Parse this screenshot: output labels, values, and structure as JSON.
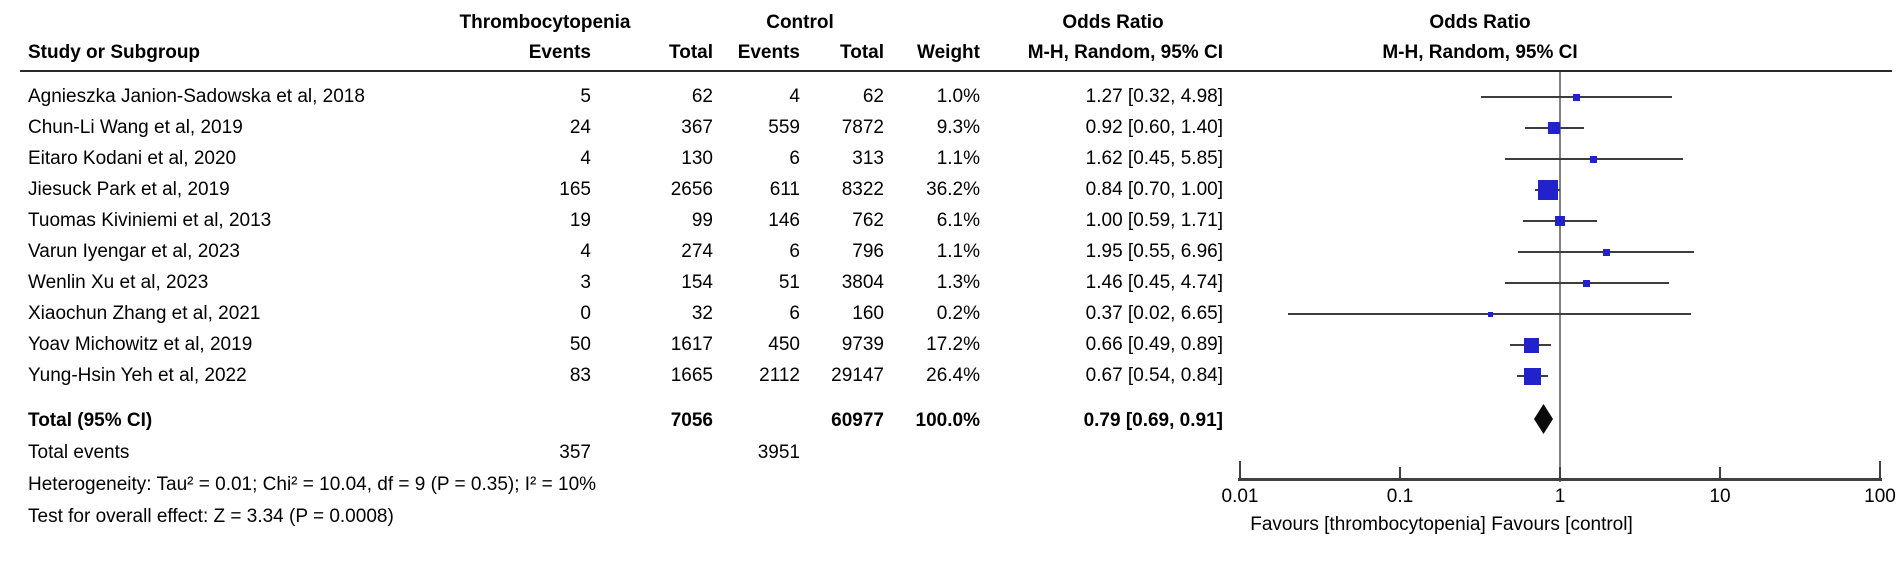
{
  "table": {
    "headers": {
      "group1": "Thrombocytopenia",
      "group2": "Control",
      "study": "Study or Subgroup",
      "events": "Events",
      "total": "Total",
      "weight": "Weight",
      "or_text_title": "Odds Ratio",
      "or_text_sub": "M-H, Random, 95% CI",
      "or_plot_title": "Odds Ratio",
      "or_plot_sub": "M-H, Random, 95% CI"
    },
    "rows": [
      {
        "study": "Agnieszka Janion-Sadowska et al, 2018",
        "events1": "5",
        "total1": "62",
        "events2": "4",
        "total2": "62",
        "weight": "1.0%",
        "or_ci": "1.27 [0.32, 4.98]"
      },
      {
        "study": "Chun-Li Wang et al, 2019",
        "events1": "24",
        "total1": "367",
        "events2": "559",
        "total2": "7872",
        "weight": "9.3%",
        "or_ci": "0.92 [0.60, 1.40]"
      },
      {
        "study": "Eitaro Kodani et al, 2020",
        "events1": "4",
        "total1": "130",
        "events2": "6",
        "total2": "313",
        "weight": "1.1%",
        "or_ci": "1.62 [0.45, 5.85]"
      },
      {
        "study": "Jiesuck Park et al, 2019",
        "events1": "165",
        "total1": "2656",
        "events2": "611",
        "total2": "8322",
        "weight": "36.2%",
        "or_ci": "0.84 [0.70, 1.00]"
      },
      {
        "study": "Tuomas Kiviniemi et al, 2013",
        "events1": "19",
        "total1": "99",
        "events2": "146",
        "total2": "762",
        "weight": "6.1%",
        "or_ci": "1.00 [0.59, 1.71]"
      },
      {
        "study": "Varun Iyengar et al, 2023",
        "events1": "4",
        "total1": "274",
        "events2": "6",
        "total2": "796",
        "weight": "1.1%",
        "or_ci": "1.95 [0.55, 6.96]"
      },
      {
        "study": "Wenlin Xu et al, 2023",
        "events1": "3",
        "total1": "154",
        "events2": "51",
        "total2": "3804",
        "weight": "1.3%",
        "or_ci": "1.46 [0.45, 4.74]"
      },
      {
        "study": "Xiaochun Zhang et al, 2021",
        "events1": "0",
        "total1": "32",
        "events2": "6",
        "total2": "160",
        "weight": "0.2%",
        "or_ci": "0.37 [0.02, 6.65]"
      },
      {
        "study": "Yoav Michowitz et al, 2019",
        "events1": "50",
        "total1": "1617",
        "events2": "450",
        "total2": "9739",
        "weight": "17.2%",
        "or_ci": "0.66 [0.49, 0.89]"
      },
      {
        "study": "Yung-Hsin Yeh et al, 2022",
        "events1": "83",
        "total1": "1665",
        "events2": "2112",
        "total2": "29147",
        "weight": "26.4%",
        "or_ci": "0.67 [0.54, 0.84]"
      }
    ],
    "total_row": {
      "label": "Total (95% CI)",
      "total1": "7056",
      "total2": "60977",
      "weight": "100.0%",
      "or_ci": "0.79 [0.69, 0.91]"
    },
    "total_events": {
      "label": "Total events",
      "events1": "357",
      "events2": "3951"
    },
    "heterogeneity": "Heterogeneity: Tau² = 0.01; Chi² = 10.04, df = 9 (P = 0.35); I² = 10%",
    "overall_effect": "Test for overall effect: Z = 3.34 (P = 0.0008)"
  },
  "chart_data": {
    "type": "forest",
    "x_scale": "log",
    "xlim": [
      0.01,
      100
    ],
    "x_ticks": [
      0.01,
      0.1,
      1,
      10,
      100
    ],
    "x_tick_labels": [
      "0.01",
      "0.1",
      "1",
      "10",
      "100"
    ],
    "effect_measure": "Odds Ratio (M-H, Random, 95% CI)",
    "favours_left": "Favours [thrombocytopenia]",
    "favours_right": "Favours [control]",
    "studies": [
      {
        "name": "Agnieszka Janion-Sadowska et al, 2018",
        "or": 1.27,
        "lo": 0.32,
        "hi": 4.98,
        "weight_pct": 1.0
      },
      {
        "name": "Chun-Li Wang et al, 2019",
        "or": 0.92,
        "lo": 0.6,
        "hi": 1.4,
        "weight_pct": 9.3
      },
      {
        "name": "Eitaro Kodani et al, 2020",
        "or": 1.62,
        "lo": 0.45,
        "hi": 5.85,
        "weight_pct": 1.1
      },
      {
        "name": "Jiesuck Park et al, 2019",
        "or": 0.84,
        "lo": 0.7,
        "hi": 1.0,
        "weight_pct": 36.2
      },
      {
        "name": "Tuomas Kiviniemi et al, 2013",
        "or": 1.0,
        "lo": 0.59,
        "hi": 1.71,
        "weight_pct": 6.1
      },
      {
        "name": "Varun Iyengar et al, 2023",
        "or": 1.95,
        "lo": 0.55,
        "hi": 6.96,
        "weight_pct": 1.1
      },
      {
        "name": "Wenlin Xu et al, 2023",
        "or": 1.46,
        "lo": 0.45,
        "hi": 4.74,
        "weight_pct": 1.3
      },
      {
        "name": "Xiaochun Zhang et al, 2021",
        "or": 0.37,
        "lo": 0.02,
        "hi": 6.65,
        "weight_pct": 0.2
      },
      {
        "name": "Yoav Michowitz et al, 2019",
        "or": 0.66,
        "lo": 0.49,
        "hi": 0.89,
        "weight_pct": 17.2
      },
      {
        "name": "Yung-Hsin Yeh et al, 2022",
        "or": 0.67,
        "lo": 0.54,
        "hi": 0.84,
        "weight_pct": 26.4
      }
    ],
    "total": {
      "label": "Total (95% CI)",
      "or": 0.79,
      "lo": 0.69,
      "hi": 0.91
    }
  },
  "colors": {
    "square_blue": "#2222cc",
    "diamond_black": "#0a0a0a",
    "ci_line": "#3d3d3d",
    "axis": "#404040",
    "center_line": "#808080",
    "text": "#000000"
  }
}
